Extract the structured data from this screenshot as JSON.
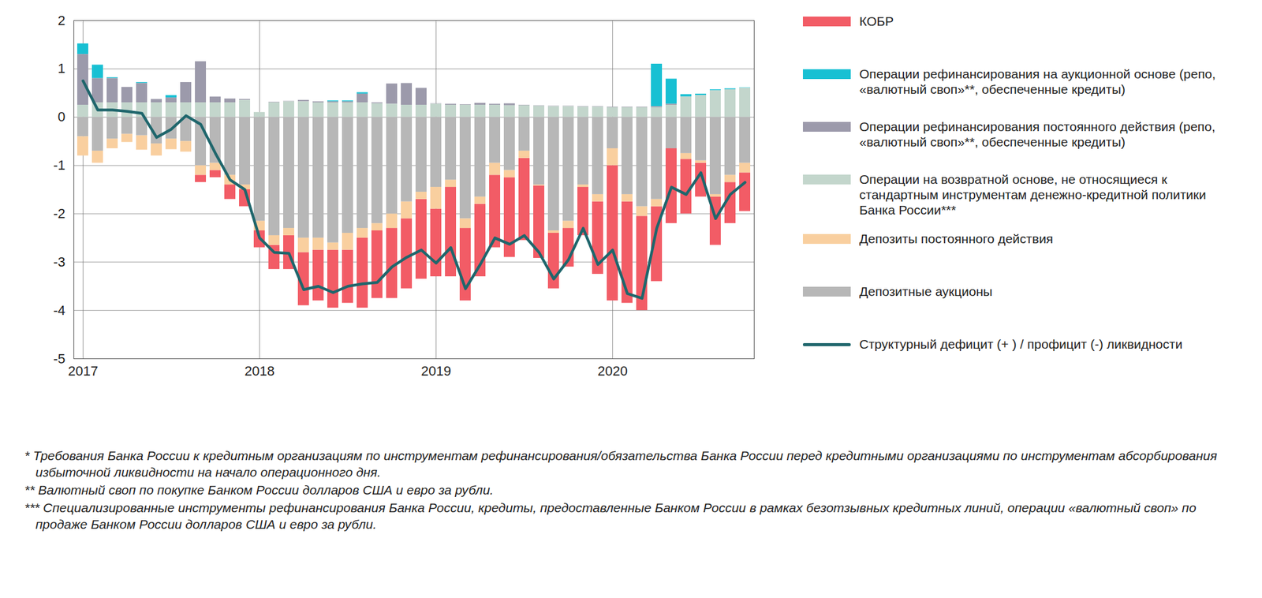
{
  "chart_data": {
    "type": "bar",
    "stacked": true,
    "grid": true,
    "legend": "right",
    "categories": [
      "2017",
      null,
      null,
      null,
      null,
      null,
      null,
      null,
      null,
      null,
      null,
      null,
      "2018",
      null,
      null,
      null,
      null,
      null,
      null,
      null,
      null,
      null,
      null,
      null,
      "2019",
      null,
      null,
      null,
      null,
      null,
      null,
      null,
      null,
      null,
      null,
      null,
      "2020",
      null,
      null,
      null,
      null,
      null,
      null,
      null,
      null,
      null
    ],
    "ylim": [
      -5,
      2
    ],
    "yticks": [
      -5,
      -4,
      -3,
      -2,
      -1,
      0,
      1,
      2
    ],
    "series": [
      {
        "name": "КОБР",
        "color": "#f25c66",
        "type": "bar",
        "values": [
          0,
          0,
          0,
          0,
          0,
          0,
          0,
          0,
          -0.15,
          -0.15,
          -0.3,
          -0.35,
          -0.35,
          -0.5,
          -0.7,
          -1.1,
          -1.05,
          -1.2,
          -1.1,
          -1.45,
          -1.4,
          -1.45,
          -1.45,
          -1.65,
          -1.4,
          -1.85,
          -1.5,
          -1.5,
          -1.5,
          -1.65,
          -1.7,
          -1.5,
          -1.15,
          -0.8,
          -1.0,
          -1.5,
          -2.8,
          -2.1,
          -1.95,
          -1.55,
          -1.55,
          -1.13,
          -0.7,
          -1.0,
          -0.85,
          -0.8
        ]
      },
      {
        "name": "Операции рефинансирования на аукционной основе (репо, «валютный своп»**, обеспеченные кредиты)",
        "color": "#18c0d3",
        "type": "bar",
        "values": [
          0.22,
          0.28,
          0.02,
          0,
          0.02,
          0,
          0.05,
          0,
          0,
          0,
          0,
          0,
          0,
          0,
          0,
          0,
          0,
          0.02,
          0.02,
          0.03,
          0,
          0,
          0,
          0,
          0,
          0,
          0,
          0,
          0,
          0,
          0,
          0,
          0,
          0,
          0,
          0,
          0,
          0,
          0,
          0.88,
          0.52,
          0.05,
          0.03,
          0.02,
          0.02,
          0.01
        ]
      },
      {
        "name": "Операции рефинансирования постоянного действия (репо, «валютный своп»**, обеспеченные кредиты)",
        "color": "#9c9aab",
        "type": "bar",
        "values": [
          1.05,
          0.5,
          0.5,
          0.32,
          0.4,
          0.07,
          0.1,
          0.42,
          0.85,
          0.12,
          0.08,
          0.02,
          0,
          0.01,
          0.01,
          0.03,
          0.02,
          0.02,
          0.02,
          0.18,
          0.02,
          0.42,
          0.45,
          0.35,
          0.01,
          0.02,
          0.01,
          0.04,
          0.02,
          0.04,
          0.01,
          0.01,
          0.01,
          0.01,
          0.01,
          0.01,
          0.01,
          0.01,
          0.01,
          0.02,
          0.02,
          0,
          0,
          0,
          0,
          0
        ]
      },
      {
        "name": "Операции на возвратной основе, не относящиеся к стандартным инструментам денежно-кредитной политики Банка России***",
        "color": "#c3d6cc",
        "type": "bar",
        "values": [
          0.25,
          0.3,
          0.3,
          0.3,
          0.3,
          0.3,
          0.3,
          0.3,
          0.3,
          0.3,
          0.3,
          0.35,
          0.1,
          0.3,
          0.32,
          0.32,
          0.3,
          0.3,
          0.3,
          0.3,
          0.28,
          0.27,
          0.25,
          0.25,
          0.27,
          0.25,
          0.25,
          0.25,
          0.25,
          0.24,
          0.24,
          0.23,
          0.22,
          0.22,
          0.21,
          0.21,
          0.2,
          0.2,
          0.2,
          0.2,
          0.25,
          0.42,
          0.45,
          0.55,
          0.57,
          0.6
        ]
      },
      {
        "name": "Депозиты постоянного действия",
        "color": "#f9cf9f",
        "type": "bar",
        "values": [
          -0.4,
          -0.25,
          -0.2,
          -0.17,
          -0.3,
          -0.25,
          -0.22,
          -0.22,
          -0.2,
          -0.15,
          -0.2,
          -0.1,
          -0.2,
          -0.2,
          -0.15,
          -0.3,
          -0.25,
          -0.15,
          -0.35,
          -0.2,
          -0.15,
          -0.3,
          -0.35,
          -0.15,
          -0.45,
          -0.15,
          -0.2,
          -0.15,
          -0.25,
          -0.15,
          -0.15,
          -0.02,
          -0.05,
          -0.15,
          -0.05,
          -0.15,
          -0.35,
          -0.15,
          -0.2,
          -0.15,
          0,
          -0.12,
          -0.05,
          -0.05,
          -0.15,
          -0.2
        ]
      },
      {
        "name": "Депозитные аукционы",
        "color": "#b7b7b7",
        "type": "bar",
        "values": [
          -0.4,
          -0.7,
          -0.45,
          -0.35,
          -0.38,
          -0.55,
          -0.45,
          -0.5,
          -1.0,
          -0.95,
          -1.2,
          -1.4,
          -2.15,
          -2.45,
          -2.3,
          -2.5,
          -2.5,
          -2.6,
          -2.4,
          -2.3,
          -2.2,
          -2.0,
          -1.75,
          -1.55,
          -1.45,
          -1.3,
          -2.1,
          -1.65,
          -0.95,
          -1.1,
          -0.7,
          -1.4,
          -2.35,
          -2.15,
          -1.4,
          -1.6,
          -0.65,
          -1.6,
          -1.85,
          -1.7,
          -0.65,
          -0.75,
          -0.9,
          -1.6,
          -1.2,
          -0.95
        ]
      },
      {
        "name": "Структурный дефицит (+ ) / профицит (-) ликвидности",
        "color": "#1f666c",
        "type": "line",
        "values": [
          0.75,
          0.15,
          0.15,
          0.12,
          0.08,
          -0.42,
          -0.25,
          0.03,
          -0.15,
          -0.75,
          -1.3,
          -1.5,
          -2.5,
          -2.8,
          -2.82,
          -3.57,
          -3.5,
          -3.63,
          -3.5,
          -3.45,
          -3.42,
          -3.1,
          -2.9,
          -2.75,
          -3.02,
          -2.7,
          -3.55,
          -3.05,
          -2.5,
          -2.63,
          -2.45,
          -2.8,
          -3.35,
          -2.95,
          -2.3,
          -3.05,
          -2.75,
          -3.65,
          -3.75,
          -2.3,
          -1.45,
          -1.6,
          -1.15,
          -2.1,
          -1.6,
          -1.35
        ]
      }
    ],
    "footnotes": [
      "* Требования Банка России к кредитным организациям по инструментам рефинансирования/обязательства Банка России перед кредитными организациями по инструментам абсорбирования избыточной ликвидности на начало операционного дня.",
      "** Валютный своп по покупке Банком России долларов США и евро за рубли.",
      "*** Специализированные инструменты рефинансирования Банка России, кредиты, предоставленные Банком России в рамках безотзывных кредитных линий, операции «валютный своп» по продаже Банком России долларов США и евро за рубли."
    ]
  }
}
